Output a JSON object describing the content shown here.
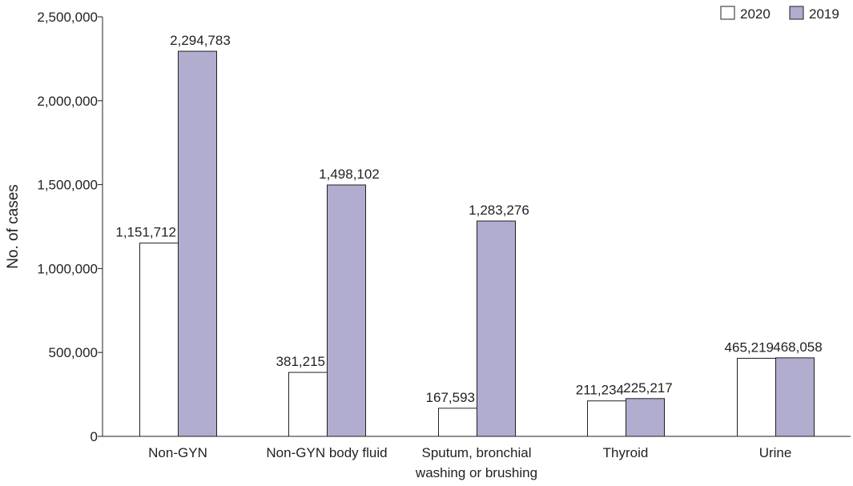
{
  "chart_data": {
    "type": "bar",
    "title": "",
    "xlabel": "",
    "ylabel": "No. of cases",
    "ylim": [
      0,
      2500000
    ],
    "yticks": [
      0,
      500000,
      1000000,
      1500000,
      2000000,
      2500000
    ],
    "ytick_labels": [
      "0",
      "500,000",
      "1,000,000",
      "1,500,000",
      "2,000,000",
      "2,500,000"
    ],
    "categories": [
      [
        "Non-GYN"
      ],
      [
        "Non-GYN body fluid"
      ],
      [
        "Sputum, bronchial",
        "washing or brushing"
      ],
      [
        "Thyroid"
      ],
      [
        "Urine"
      ]
    ],
    "series": [
      {
        "name": "2020",
        "color": "#ffffff",
        "values": [
          1151712,
          381215,
          167593,
          211234,
          465219
        ],
        "labels": [
          "1,151,712",
          "381,215",
          "167,593",
          "211,234",
          "465,219"
        ]
      },
      {
        "name": "2019",
        "color": "#b1adcf",
        "values": [
          2294783,
          1498102,
          1283276,
          225217,
          468058
        ],
        "labels": [
          "2,294,783",
          "1,498,102",
          "1,283,276",
          "225,217",
          "468,058"
        ]
      }
    ],
    "legend_position": "top-right",
    "grid": false
  }
}
